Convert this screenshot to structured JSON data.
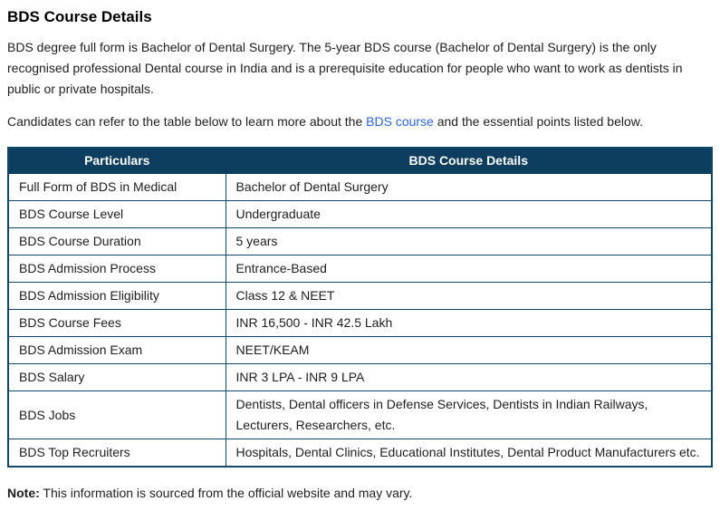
{
  "title": "BDS Course Details",
  "paragraphs": {
    "intro": "BDS degree full form is Bachelor of Dental Surgery. The 5-year BDS course (Bachelor of Dental Surgery) is the only recognised professional Dental course in India and is a prerequisite education for people who want to work as dentists in public or private hospitals.",
    "lead": {
      "before_link": "Candidates can refer to the table below to learn more about the ",
      "link_text": "BDS course",
      "after_link": " and the essential points listed below."
    }
  },
  "table": {
    "headers": [
      "Particulars",
      "BDS Course Details"
    ],
    "rows": [
      {
        "particular": "Full Form of BDS in Medical",
        "detail": "Bachelor of Dental Surgery"
      },
      {
        "particular": "BDS Course Level",
        "detail": "Undergraduate"
      },
      {
        "particular": "BDS Course Duration",
        "detail": "5 years"
      },
      {
        "particular": "BDS Admission Process",
        "detail": "Entrance-Based"
      },
      {
        "particular": "BDS Admission Eligibility",
        "detail": "Class 12 & NEET"
      },
      {
        "particular": "BDS Course Fees",
        "detail": "INR 16,500 - INR 42.5 Lakh"
      },
      {
        "particular": "BDS Admission Exam",
        "detail": "NEET/KEAM"
      },
      {
        "particular": "BDS Salary",
        "detail": "INR 3 LPA - INR 9 LPA"
      },
      {
        "particular": "BDS Jobs",
        "detail": "Dentists, Dental officers in Defense Services, Dentists in Indian Railways, Lecturers, Researchers, etc."
      },
      {
        "particular": "BDS Top Recruiters",
        "detail": "Hospitals, Dental Clinics, Educational Institutes, Dental Product Manufacturers etc."
      }
    ]
  },
  "note": {
    "label": "Note:",
    "text": " This information is sourced from the official website and may vary."
  },
  "colors": {
    "header_bg": "#0d3e5f",
    "header_text": "#ffffff",
    "border": "#11486a",
    "link": "#2b65dd",
    "text": "#1e1e1e",
    "title": "#000000"
  }
}
